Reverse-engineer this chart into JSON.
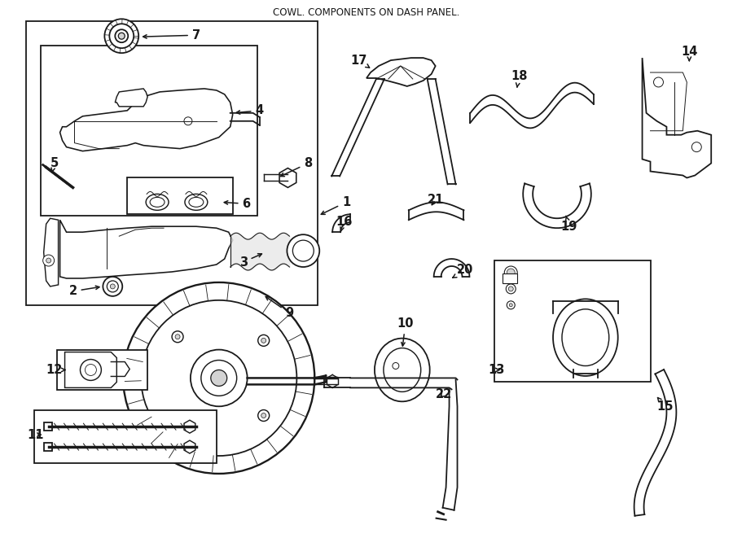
{
  "title": "COWL. COMPONENTS ON DASH PANEL.",
  "bg": "#ffffff",
  "lc": "#1a1a1a",
  "lw": 1.3,
  "figsize": [
    9.0,
    6.61
  ],
  "dpi": 100
}
